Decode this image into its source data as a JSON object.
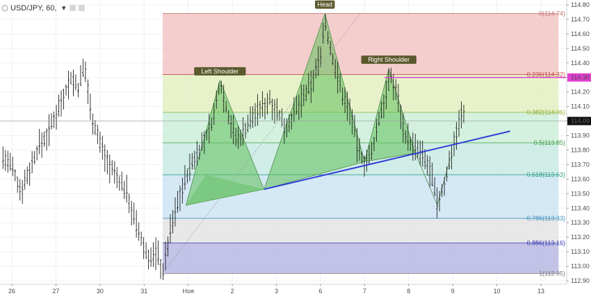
{
  "header": {
    "symbol": "USD/JPY, 60,",
    "menu_glyph": "▾"
  },
  "colors": {
    "fib_red": "#f2c6c4",
    "fib_green_light": "#e3f0c2",
    "fib_mint": "#cdeed9",
    "fib_teal": "#c9eae3",
    "fib_blue": "#cde4f3",
    "fib_grey": "#e4e4e4",
    "fib_purple": "#b9b7e3",
    "pattern_fill": "#5fbf5a",
    "neckline": "#2f3fd8",
    "magenta": "#e040d0",
    "label_bg": "#5b5a2e"
  },
  "chart_data": {
    "type": "candlestick",
    "title": "USD/JPY, 60,",
    "ylim": [
      112.9,
      114.84
    ],
    "y_ticks": [
      114.8,
      114.7,
      114.6,
      114.5,
      114.4,
      114.3,
      114.2,
      114.1,
      114.0,
      113.9,
      113.8,
      113.7,
      113.6,
      113.5,
      113.4,
      113.3,
      113.2,
      113.1,
      113.0,
      112.9
    ],
    "y_tick_labels": [
      "114.80",
      "114.70",
      "114.60",
      "114.50",
      "114.40",
      "114.30",
      "114.20",
      "114.10",
      "114.00",
      "113.90",
      "113.80",
      "113.70",
      "113.60",
      "113.50",
      "113.40",
      "113.30",
      "113.20",
      "113.10",
      "113.00",
      "112.90"
    ],
    "x_range": [
      25.75,
      13.0
    ],
    "x_ticks": [
      {
        "pos": 26,
        "label": "26"
      },
      {
        "pos": 27,
        "label": "27"
      },
      {
        "pos": 28,
        "label": "30"
      },
      {
        "pos": 29,
        "label": "31"
      },
      {
        "pos": 30,
        "label": "Ноя"
      },
      {
        "pos": 31,
        "label": "2"
      },
      {
        "pos": 32,
        "label": "3"
      },
      {
        "pos": 33,
        "label": "6"
      },
      {
        "pos": 34,
        "label": "7"
      },
      {
        "pos": 35,
        "label": "8"
      },
      {
        "pos": 36,
        "label": "9"
      },
      {
        "pos": 37,
        "label": "10"
      },
      {
        "pos": 38,
        "label": "13"
      }
    ],
    "x_axis_start": 25.8,
    "x_axis_end": 38.3,
    "current_price": 114.0,
    "current_price_label": "114.00",
    "magenta_level": 114.3,
    "magenta_label": "114.30",
    "price_path": [
      [
        25.8,
        113.75
      ],
      [
        26.0,
        113.68
      ],
      [
        26.2,
        113.52
      ],
      [
        26.4,
        113.66
      ],
      [
        26.6,
        113.82
      ],
      [
        26.8,
        113.9
      ],
      [
        27.0,
        114.05
      ],
      [
        27.2,
        114.2
      ],
      [
        27.35,
        114.3
      ],
      [
        27.5,
        114.22
      ],
      [
        27.65,
        114.38
      ],
      [
        27.8,
        114.05
      ],
      [
        28.0,
        113.85
      ],
      [
        28.2,
        113.7
      ],
      [
        28.4,
        113.6
      ],
      [
        28.6,
        113.52
      ],
      [
        28.8,
        113.3
      ],
      [
        29.0,
        113.12
      ],
      [
        29.15,
        113.05
      ],
      [
        29.3,
        113.1
      ],
      [
        29.42,
        112.95
      ],
      [
        29.6,
        113.25
      ],
      [
        29.8,
        113.48
      ],
      [
        30.0,
        113.65
      ],
      [
        30.2,
        113.78
      ],
      [
        30.4,
        113.88
      ],
      [
        30.6,
        114.05
      ],
      [
        30.72,
        114.28
      ],
      [
        30.9,
        114.05
      ],
      [
        31.1,
        113.86
      ],
      [
        31.3,
        113.95
      ],
      [
        31.5,
        114.05
      ],
      [
        31.7,
        114.1
      ],
      [
        31.85,
        114.15
      ],
      [
        32.0,
        114.08
      ],
      [
        32.2,
        113.95
      ],
      [
        32.4,
        114.05
      ],
      [
        32.6,
        114.15
      ],
      [
        32.8,
        114.25
      ],
      [
        33.0,
        114.46
      ],
      [
        33.1,
        114.7
      ],
      [
        33.2,
        114.52
      ],
      [
        33.35,
        114.35
      ],
      [
        33.5,
        114.18
      ],
      [
        33.7,
        114.05
      ],
      [
        33.85,
        113.8
      ],
      [
        34.0,
        113.72
      ],
      [
        34.15,
        113.75
      ],
      [
        34.3,
        113.98
      ],
      [
        34.45,
        114.15
      ],
      [
        34.6,
        114.3
      ],
      [
        34.75,
        114.18
      ],
      [
        34.9,
        113.92
      ],
      [
        35.1,
        113.82
      ],
      [
        35.3,
        113.76
      ],
      [
        35.5,
        113.65
      ],
      [
        35.65,
        113.42
      ],
      [
        35.8,
        113.55
      ],
      [
        35.95,
        113.75
      ],
      [
        36.05,
        113.88
      ],
      [
        36.2,
        114.05
      ],
      [
        36.3,
        114.02
      ]
    ],
    "fibonacci": {
      "top": 114.74,
      "bottom": 112.95,
      "x_start": 29.42,
      "x_end": 38.4,
      "levels": [
        {
          "ratio": "0",
          "price": 114.74,
          "label": "0(114.74)",
          "color": "#c27571"
        },
        {
          "ratio": "0.236",
          "price": 114.32,
          "label": "0.236(114.32)",
          "color": "#c24b45"
        },
        {
          "ratio": "0.382",
          "price": 114.06,
          "label": "0.382(114.06)",
          "color": "#8fae2f"
        },
        {
          "ratio": "0.5",
          "price": 113.85,
          "label": "0.5(113.85)",
          "color": "#3f9f45"
        },
        {
          "ratio": "0.618",
          "price": 113.63,
          "label": "0.618(113.63)",
          "color": "#2f9f86"
        },
        {
          "ratio": "0.786",
          "price": 113.33,
          "label": "0.786(113.33)",
          "color": "#3f8fbf"
        },
        {
          "ratio": "0.886",
          "price": 113.16,
          "label": "0.886(113.16)",
          "color": "#2f33b0"
        },
        {
          "ratio": "1",
          "price": 112.95,
          "label": "1(112.95)",
          "color": "#7a7a7a"
        }
      ]
    },
    "head_and_shoulders": {
      "triangles": [
        {
          "points": [
            [
              29.95,
              113.42
            ],
            [
              30.72,
              114.28
            ],
            [
              31.72,
              113.53
            ]
          ]
        },
        {
          "points": [
            [
              31.72,
              113.53
            ],
            [
              33.1,
              114.74
            ],
            [
              34.0,
              113.72
            ]
          ]
        },
        {
          "points": [
            [
              34.0,
              113.72
            ],
            [
              34.55,
              114.36
            ],
            [
              35.15,
              113.78
            ]
          ]
        }
      ],
      "outer": [
        [
          29.95,
          113.42
        ],
        [
          30.72,
          114.28
        ],
        [
          31.72,
          113.53
        ],
        [
          33.1,
          114.74
        ],
        [
          34.0,
          113.72
        ],
        [
          34.55,
          114.36
        ],
        [
          35.15,
          113.78
        ],
        [
          35.65,
          113.42
        ]
      ],
      "neckline": {
        "from": [
          31.72,
          113.53
        ],
        "to": [
          37.3,
          113.93
        ]
      },
      "dotted_line": {
        "from": [
          29.42,
          112.95
        ],
        "to": [
          33.9,
          114.74
        ]
      },
      "labels": [
        {
          "text": "Left Shoulder",
          "x": 30.72,
          "price": 114.28
        },
        {
          "text": "Head",
          "x": 33.1,
          "price": 114.74
        },
        {
          "text": "Right Shoulder",
          "x": 34.55,
          "price": 114.36
        }
      ]
    }
  }
}
